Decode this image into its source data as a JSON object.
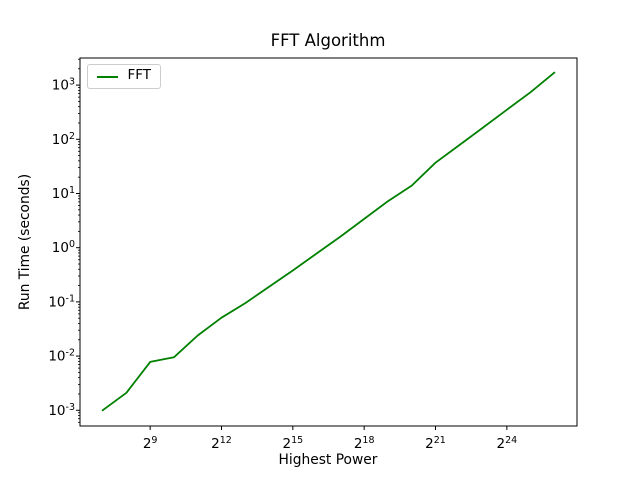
{
  "colors": {
    "background": "#ffffff",
    "axis": "#000000",
    "text": "#000000",
    "series_green": "#008000",
    "legend_border": "#cccccc"
  },
  "chart_data": {
    "type": "line",
    "title": "FFT Algorithm",
    "xlabel": "Highest Power",
    "ylabel": "Run Time (seconds)",
    "x_scale": "log2",
    "y_scale": "log10",
    "grid": false,
    "legend_position": "upper left",
    "x_tick_label_base": "2",
    "y_tick_label_base": "10",
    "x_major_tick_exponents": [
      9,
      12,
      15,
      18,
      21,
      24
    ],
    "y_major_tick_exponents": [
      3,
      2,
      1,
      0,
      -1,
      -2,
      -3
    ],
    "xlim_log2": [
      6.05,
      26.95
    ],
    "ylim_log10": [
      -3.29,
      3.5
    ],
    "series": [
      {
        "name": "FFT",
        "color": "#008000",
        "x_log2_exponents": [
          7,
          8,
          9,
          10,
          11,
          12,
          13,
          14,
          15,
          16,
          17,
          18,
          19,
          20,
          21,
          22,
          23,
          24,
          25,
          26
        ],
        "y_seconds": [
          0.001,
          0.0021,
          0.0078,
          0.0095,
          0.024,
          0.051,
          0.095,
          0.19,
          0.38,
          0.78,
          1.6,
          3.4,
          7.2,
          14,
          37,
          78,
          165,
          350,
          740,
          1700
        ]
      }
    ]
  }
}
